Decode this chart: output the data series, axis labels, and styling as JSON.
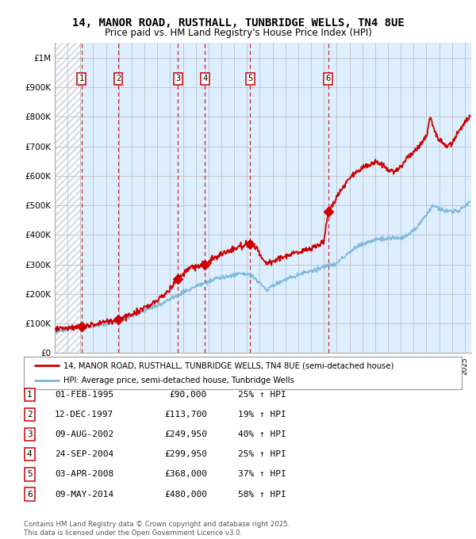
{
  "title": "14, MANOR ROAD, RUSTHALL, TUNBRIDGE WELLS, TN4 8UE",
  "subtitle": "Price paid vs. HM Land Registry's House Price Index (HPI)",
  "ylim": [
    0,
    1050000
  ],
  "yticks": [
    0,
    100000,
    200000,
    300000,
    400000,
    500000,
    600000,
    700000,
    800000,
    900000,
    1000000
  ],
  "ytick_labels": [
    "£0",
    "£100K",
    "£200K",
    "£300K",
    "£400K",
    "£500K",
    "£600K",
    "£700K",
    "£800K",
    "£900K",
    "£1M"
  ],
  "xlim_start": 1993.0,
  "xlim_end": 2025.5,
  "hpi_color": "#7ab8d9",
  "price_color": "#cc0000",
  "background_color": "#ffffff",
  "chart_bg_color": "#ddeeff",
  "grid_color": "#c0c0c0",
  "sales": [
    {
      "num": 1,
      "date_x": 1995.08,
      "price": 90000
    },
    {
      "num": 2,
      "date_x": 1997.95,
      "price": 113700
    },
    {
      "num": 3,
      "date_x": 2002.61,
      "price": 249950
    },
    {
      "num": 4,
      "date_x": 2004.73,
      "price": 299950
    },
    {
      "num": 5,
      "date_x": 2008.25,
      "price": 368000
    },
    {
      "num": 6,
      "date_x": 2014.35,
      "price": 480000
    }
  ],
  "legend_line1": "14, MANOR ROAD, RUSTHALL, TUNBRIDGE WELLS, TN4 8UE (semi-detached house)",
  "legend_line2": "HPI: Average price, semi-detached house, Tunbridge Wells",
  "footnote": "Contains HM Land Registry data © Crown copyright and database right 2025.\nThis data is licensed under the Open Government Licence v3.0.",
  "table_rows": [
    [
      "1",
      "01-FEB-1995",
      "£90,000",
      "25% ↑ HPI"
    ],
    [
      "2",
      "12-DEC-1997",
      "£113,700",
      "19% ↑ HPI"
    ],
    [
      "3",
      "09-AUG-2002",
      "£249,950",
      "40% ↑ HPI"
    ],
    [
      "4",
      "24-SEP-2004",
      "£299,950",
      "25% ↑ HPI"
    ],
    [
      "5",
      "03-APR-2008",
      "£368,000",
      "37% ↑ HPI"
    ],
    [
      "6",
      "09-MAY-2014",
      "£480,000",
      "58% ↑ HPI"
    ]
  ]
}
